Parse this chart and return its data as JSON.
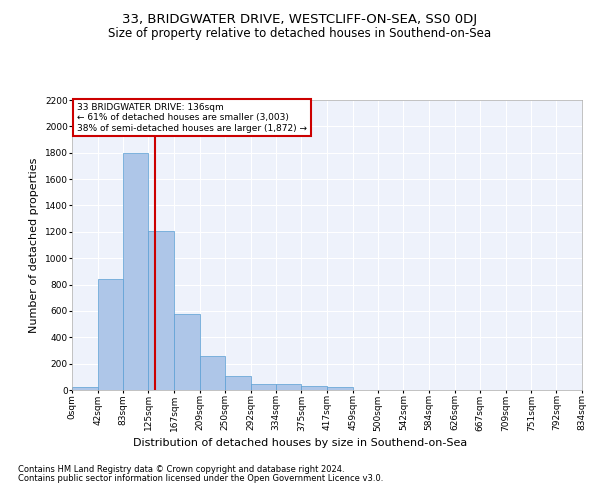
{
  "title": "33, BRIDGWATER DRIVE, WESTCLIFF-ON-SEA, SS0 0DJ",
  "subtitle": "Size of property relative to detached houses in Southend-on-Sea",
  "xlabel": "Distribution of detached houses by size in Southend-on-Sea",
  "ylabel": "Number of detached properties",
  "footnote1": "Contains HM Land Registry data © Crown copyright and database right 2024.",
  "footnote2": "Contains public sector information licensed under the Open Government Licence v3.0.",
  "annotation_title": "33 BRIDGWATER DRIVE: 136sqm",
  "annotation_line1": "← 61% of detached houses are smaller (3,003)",
  "annotation_line2": "38% of semi-detached houses are larger (1,872) →",
  "bin_edges": [
    0,
    42,
    83,
    125,
    167,
    209,
    250,
    292,
    334,
    375,
    417,
    459,
    500,
    542,
    584,
    626,
    667,
    709,
    751,
    792,
    834
  ],
  "bar_heights": [
    25,
    840,
    1800,
    1210,
    580,
    260,
    110,
    48,
    45,
    30,
    20,
    0,
    0,
    0,
    0,
    0,
    0,
    0,
    0,
    0
  ],
  "bar_color": "#aec6e8",
  "bar_edge_color": "#5a9fd4",
  "vline_color": "#cc0000",
  "vline_value": 136,
  "annotation_box_color": "#cc0000",
  "background_color": "#eef2fb",
  "grid_color": "#ffffff",
  "ylim": [
    0,
    2200
  ],
  "yticks": [
    0,
    200,
    400,
    600,
    800,
    1000,
    1200,
    1400,
    1600,
    1800,
    2000,
    2200
  ],
  "title_fontsize": 9.5,
  "subtitle_fontsize": 8.5,
  "label_fontsize": 8,
  "tick_fontsize": 6.5,
  "footnote_fontsize": 6
}
